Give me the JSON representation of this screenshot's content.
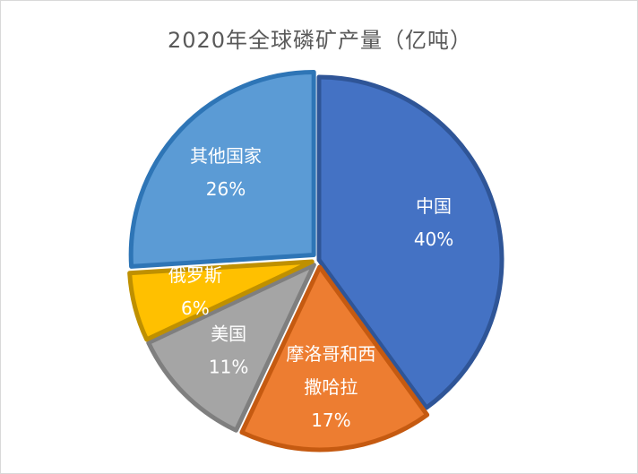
{
  "chart_data": {
    "type": "pie",
    "title": "2020年全球磷矿产量（亿吨）",
    "slices": [
      {
        "lines": [
          "中国"
        ],
        "pct_label": "40%",
        "value": 40,
        "color": "#4472C4",
        "border": "#2F5597",
        "explode": 0
      },
      {
        "lines": [
          "摩洛哥和西",
          "撒哈拉"
        ],
        "pct_label": "17%",
        "value": 17,
        "color": "#ED7D31",
        "border": "#C55A11",
        "explode": 1
      },
      {
        "lines": [
          "美国"
        ],
        "pct_label": "11%",
        "value": 11,
        "color": "#A5A5A5",
        "border": "#7F7F7F",
        "explode": 1
      },
      {
        "lines": [
          "俄罗斯"
        ],
        "pct_label": "6%",
        "value": 6,
        "color": "#FFC000",
        "border": "#BF9000",
        "explode": 1
      },
      {
        "lines": [
          "其他国家"
        ],
        "pct_label": "26%",
        "value": 26,
        "color": "#5B9BD5",
        "border": "#2E75B6",
        "explode": 1
      }
    ],
    "legend": "none",
    "start_angle_deg": 0,
    "direction": "clockwise"
  }
}
